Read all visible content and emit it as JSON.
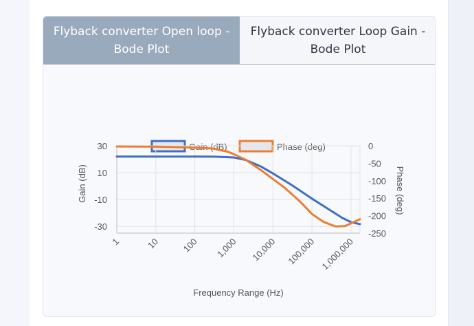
{
  "tabs": [
    {
      "label": "Flyback converter Open loop - Bode Plot",
      "active": true
    },
    {
      "label": "Flyback converter Loop Gain - Bode Plot",
      "active": false
    }
  ],
  "colors": {
    "gain": "#3f6fc4",
    "phase": "#ed7d31",
    "tab_active": "#9aaabd"
  },
  "chart_data": {
    "type": "line",
    "xlabel": "Frequency Range (Hz)",
    "x_scale": "log",
    "xlim": [
      1,
      1700000
    ],
    "x_ticks": [
      "1",
      "10",
      "100",
      "1,000",
      "10,000",
      "100,000",
      "1,000,000"
    ],
    "grid": true,
    "legend_position": "top",
    "axes": {
      "y_left": {
        "label": "Gain (dB)",
        "ylim": [
          -35,
          30
        ],
        "ticks": [
          "30",
          "10",
          "-10",
          "-30"
        ]
      },
      "y_right": {
        "label": "Phase (deg)",
        "ylim": [
          -250,
          0
        ],
        "ticks": [
          "0",
          "-50",
          "-100",
          "-150",
          "-200",
          "-250"
        ]
      }
    },
    "series": [
      {
        "name": "Gain (dB)",
        "axis": "y_left",
        "x": [
          1,
          10,
          100,
          300,
          1000,
          2000,
          5000,
          10000,
          30000,
          100000,
          300000,
          600000,
          1000000,
          1700000
        ],
        "y": [
          22,
          22,
          22,
          21.9,
          21.3,
          19.5,
          14.5,
          9.4,
          0.9,
          -9.3,
          -18.1,
          -23.7,
          -26.8,
          -28.3
        ]
      },
      {
        "name": "Phase (deg)",
        "axis": "y_right",
        "x": [
          1,
          10,
          100,
          300,
          700,
          1000,
          2000,
          5000,
          10000,
          20000,
          50000,
          100000,
          200000,
          400000,
          700000,
          1000000,
          1700000
        ],
        "y": [
          -2,
          -2.5,
          -5,
          -8,
          -17,
          -24,
          -40,
          -70,
          -95,
          -120,
          -160,
          -195,
          -218,
          -231,
          -230,
          -222,
          -210
        ]
      }
    ]
  }
}
